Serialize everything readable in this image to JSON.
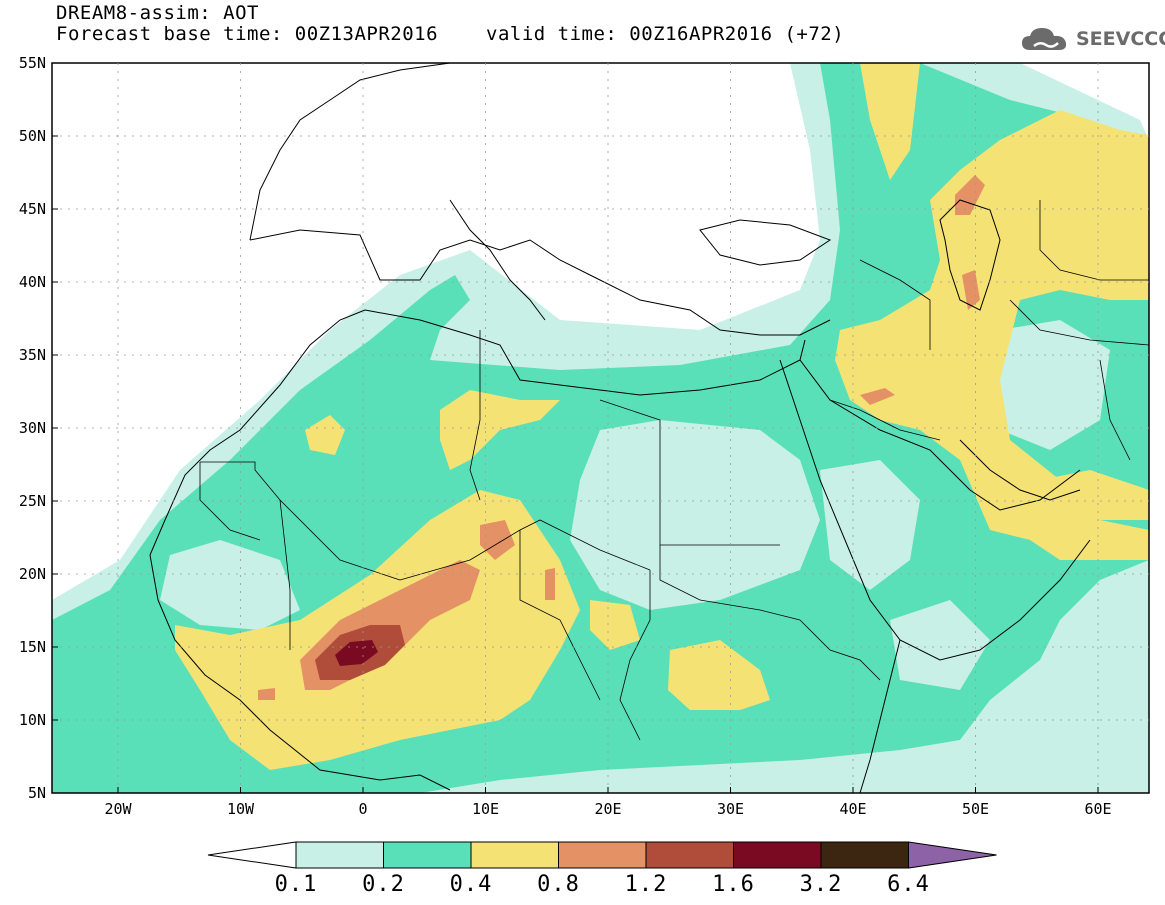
{
  "title": {
    "line1": "DREAM8-assim: AOT",
    "line2": "Forecast base time: 00Z13APR2016",
    "valid": "valid time: 00Z16APR2016 (+72)"
  },
  "logo": {
    "text": "SEEVCCC",
    "icon": "cloud-icon"
  },
  "axes": {
    "lat_labels": [
      "55N",
      "50N",
      "45N",
      "40N",
      "35N",
      "30N",
      "25N",
      "20N",
      "15N",
      "10N",
      "5N"
    ],
    "lon_labels": [
      "20W",
      "10W",
      "0",
      "10E",
      "20E",
      "30E",
      "40E",
      "50E",
      "60E"
    ]
  },
  "colorbar": {
    "labels": [
      "0.1",
      "0.2",
      "0.4",
      "0.8",
      "1.2",
      "1.6",
      "3.2",
      "6.4"
    ],
    "colors": [
      "#ffffff",
      "#c8f0e6",
      "#5ae0b8",
      "#f5e275",
      "#e59166",
      "#b04c3a",
      "#7a0a22",
      "#3c2612",
      "#8e62a6"
    ]
  },
  "map_colors": {
    "c1": "#c8f0e6",
    "c2": "#5ae0b8",
    "c3": "#f5e275",
    "c4": "#e59166",
    "c5": "#b04c3a",
    "c6": "#7a0a22"
  }
}
